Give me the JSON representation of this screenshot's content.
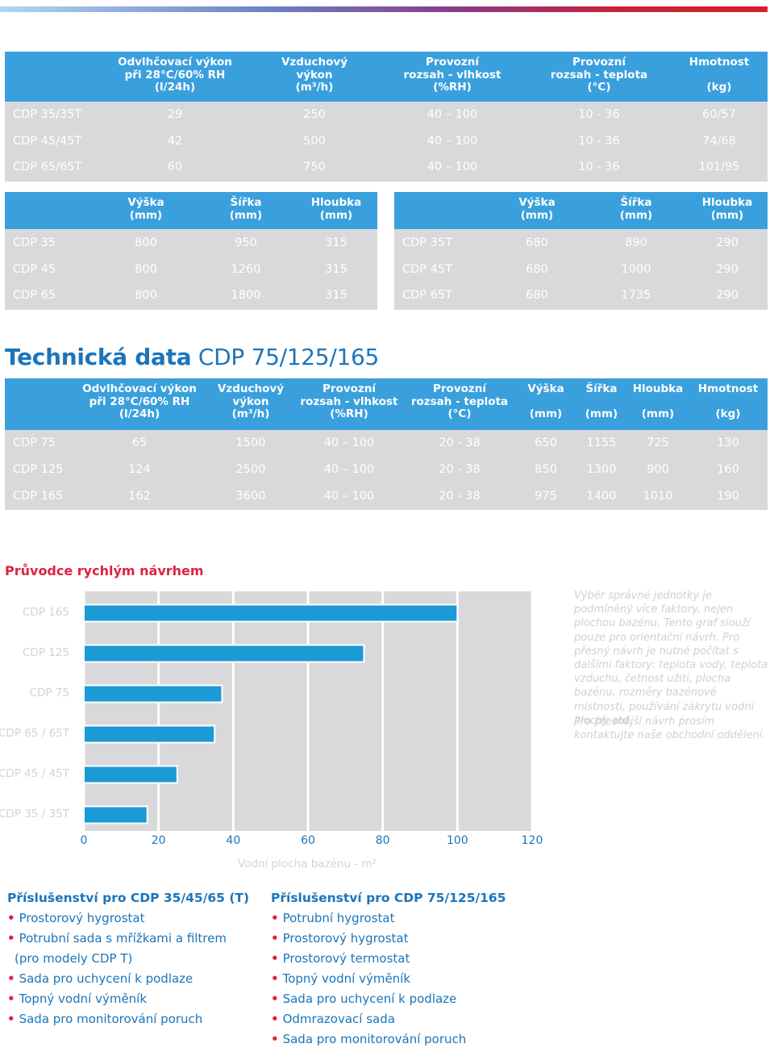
{
  "table1": {
    "headers": [
      "Odvlhčovací výkon\npři 28°C/60% RH\n(l/24h)",
      "Vzduchový\nvýkon\n(m³/h)",
      "Provozní\nrozsah - vlhkost\n(%RH)",
      "Provozní\nrozsah - teplota\n(°C)",
      "Hmotnost\n\n(kg)"
    ],
    "rows": [
      [
        "CDP 35/35T",
        "29",
        "250",
        "40 – 100",
        "10 - 36",
        "60/57"
      ],
      [
        "CDP 45/45T",
        "42",
        "500",
        "40 – 100",
        "10 - 36",
        "74/68"
      ],
      [
        "CDP 65/65T",
        "60",
        "750",
        "40 – 100",
        "10 - 36",
        "101/95"
      ]
    ]
  },
  "table2": {
    "headers": [
      "Výška\n(mm)",
      "Šířka\n(mm)",
      "Hloubka\n(mm)"
    ],
    "rows": [
      [
        "CDP 35",
        "800",
        "950",
        "315"
      ],
      [
        "CDP 45",
        "800",
        "1260",
        "315"
      ],
      [
        "CDP 65",
        "800",
        "1800",
        "315"
      ]
    ]
  },
  "table3": {
    "headers": [
      "Výška\n(mm)",
      "Šířka\n(mm)",
      "Hloubka\n(mm)"
    ],
    "rows": [
      [
        "CDP 35T",
        "680",
        "890",
        "290"
      ],
      [
        "CDP 45T",
        "680",
        "1000",
        "290"
      ],
      [
        "CDP 65T",
        "680",
        "1735",
        "290"
      ]
    ]
  },
  "section": {
    "title_bold": "Technická data",
    "title_rest": " CDP 75/125/165"
  },
  "table4": {
    "headers": [
      "Odvlhčovací výkon\npři 28°C/60% RH\n(l/24h)",
      "Vzduchový\nvýkon\n(m³/h)",
      "Provozní\nrozsah - vlhkost\n(%RH)",
      "Provozní\nrozsah - teplota\n(°C)",
      "Výška\n\n(mm)",
      "Šířka\n\n(mm)",
      "Hloubka\n\n(mm)",
      "Hmotnost\n\n(kg)"
    ],
    "rows": [
      [
        "CDP 75",
        "65",
        "1500",
        "40 – 100",
        "20 - 38",
        "650",
        "1155",
        "725",
        "130"
      ],
      [
        "CDP 125",
        "124",
        "2500",
        "40 – 100",
        "20 - 38",
        "850",
        "1300",
        "900",
        "160"
      ],
      [
        "CDP 165",
        "162",
        "3600",
        "40 – 100",
        "20 - 38",
        "975",
        "1400",
        "1010",
        "190"
      ]
    ]
  },
  "guide": {
    "title": "Průvodce rychlým návrhem",
    "note1": "Výběr správné jednotky je podmíněný více faktory, nejen plochou bazénu. Tento graf slouží pouze pro orientační návrh. Pro přesný návrh je nutné počítat s dalšími faktory: teplota vody, teplota vzduchu, četnost užití, plocha bazénu, rozměry bazénové místnosti, používání zákrytu vodní plochy atd.",
    "note2": "Pro přesnější návrh prosím kontaktujte naše obchodní oddělení."
  },
  "chart_data": {
    "type": "bar",
    "orientation": "horizontal",
    "categories": [
      "CDP 165",
      "CDP 125",
      "CDP 75",
      "CDP 65 / 65T",
      "CDP 45 / 45T",
      "CDP 35 / 35T"
    ],
    "values": [
      100,
      75,
      37,
      35,
      25,
      17
    ],
    "xticks": [
      "0",
      "20",
      "40",
      "60",
      "80",
      "100",
      "120"
    ],
    "xlim": [
      0,
      120
    ],
    "xlabel": "Vodní plocha bazénu - m²",
    "bar_color": "#1b9ad6"
  },
  "accessories": {
    "left": {
      "title": "Příslušenství pro CDP 35/45/65 (T)",
      "items": [
        "Prostorový hygrostat",
        "Potrubní sada s mřížkami a filtrem",
        "(pro modely CDP T)",
        "Sada pro uchycení k podlaze",
        "Topný vodní výměník",
        "Sada pro monitorování poruch"
      ],
      "bullet": "•"
    },
    "right": {
      "title": "Příslušenství pro CDP 75/125/165",
      "items": [
        "Potrubní hygrostat",
        "Prostorový hygrostat",
        "Prostorový termostat",
        "Topný vodní výměník",
        "Sada pro uchycení k podlaze",
        "Odmrazovací sada",
        "Sada pro monitorování poruch"
      ],
      "bullet": "•"
    }
  }
}
